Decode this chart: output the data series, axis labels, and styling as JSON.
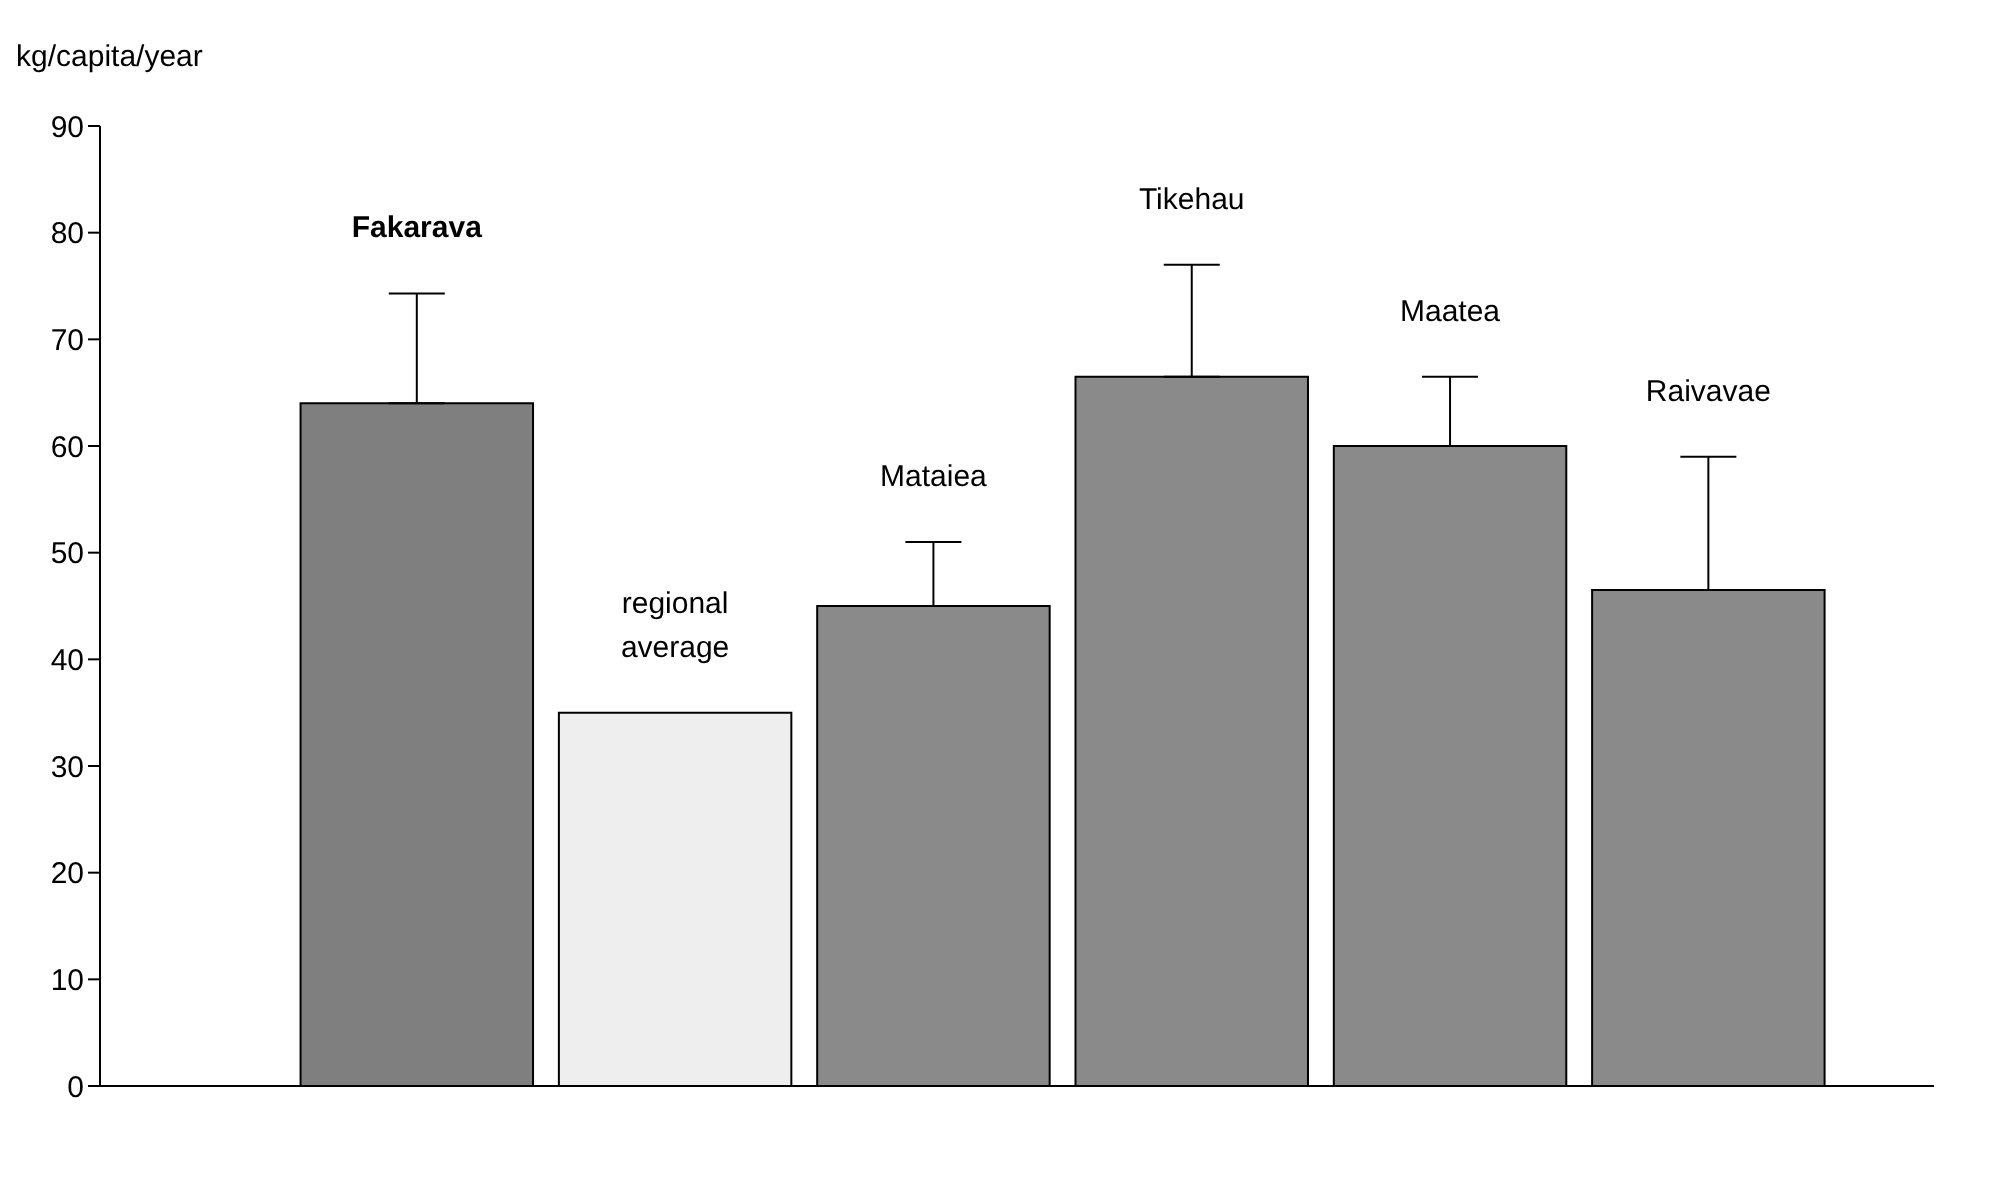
{
  "chart_data": {
    "type": "bar",
    "ylabel": "kg/capita/year",
    "categories": [
      "Fakarava",
      "regional average",
      "Mataiea",
      "Tikehau",
      "Maatea",
      "Raivavae"
    ],
    "values": [
      64,
      35,
      45,
      66.5,
      60,
      46.5
    ],
    "errors": [
      [
        64,
        74.3
      ],
      null,
      [
        45,
        51
      ],
      [
        66.5,
        77
      ],
      [
        60,
        66.5
      ],
      [
        46.5,
        59
      ]
    ],
    "colors": [
      "#7f7f7f",
      "#eeeeee",
      "#8a8a8a",
      "#8a8a8a",
      "#8a8a8a",
      "#8a8a8a"
    ],
    "ylim": [
      0,
      90
    ],
    "yticks": [
      0,
      10,
      20,
      30,
      40,
      50,
      60,
      70,
      80,
      90
    ],
    "grid": false,
    "legend": false
  }
}
